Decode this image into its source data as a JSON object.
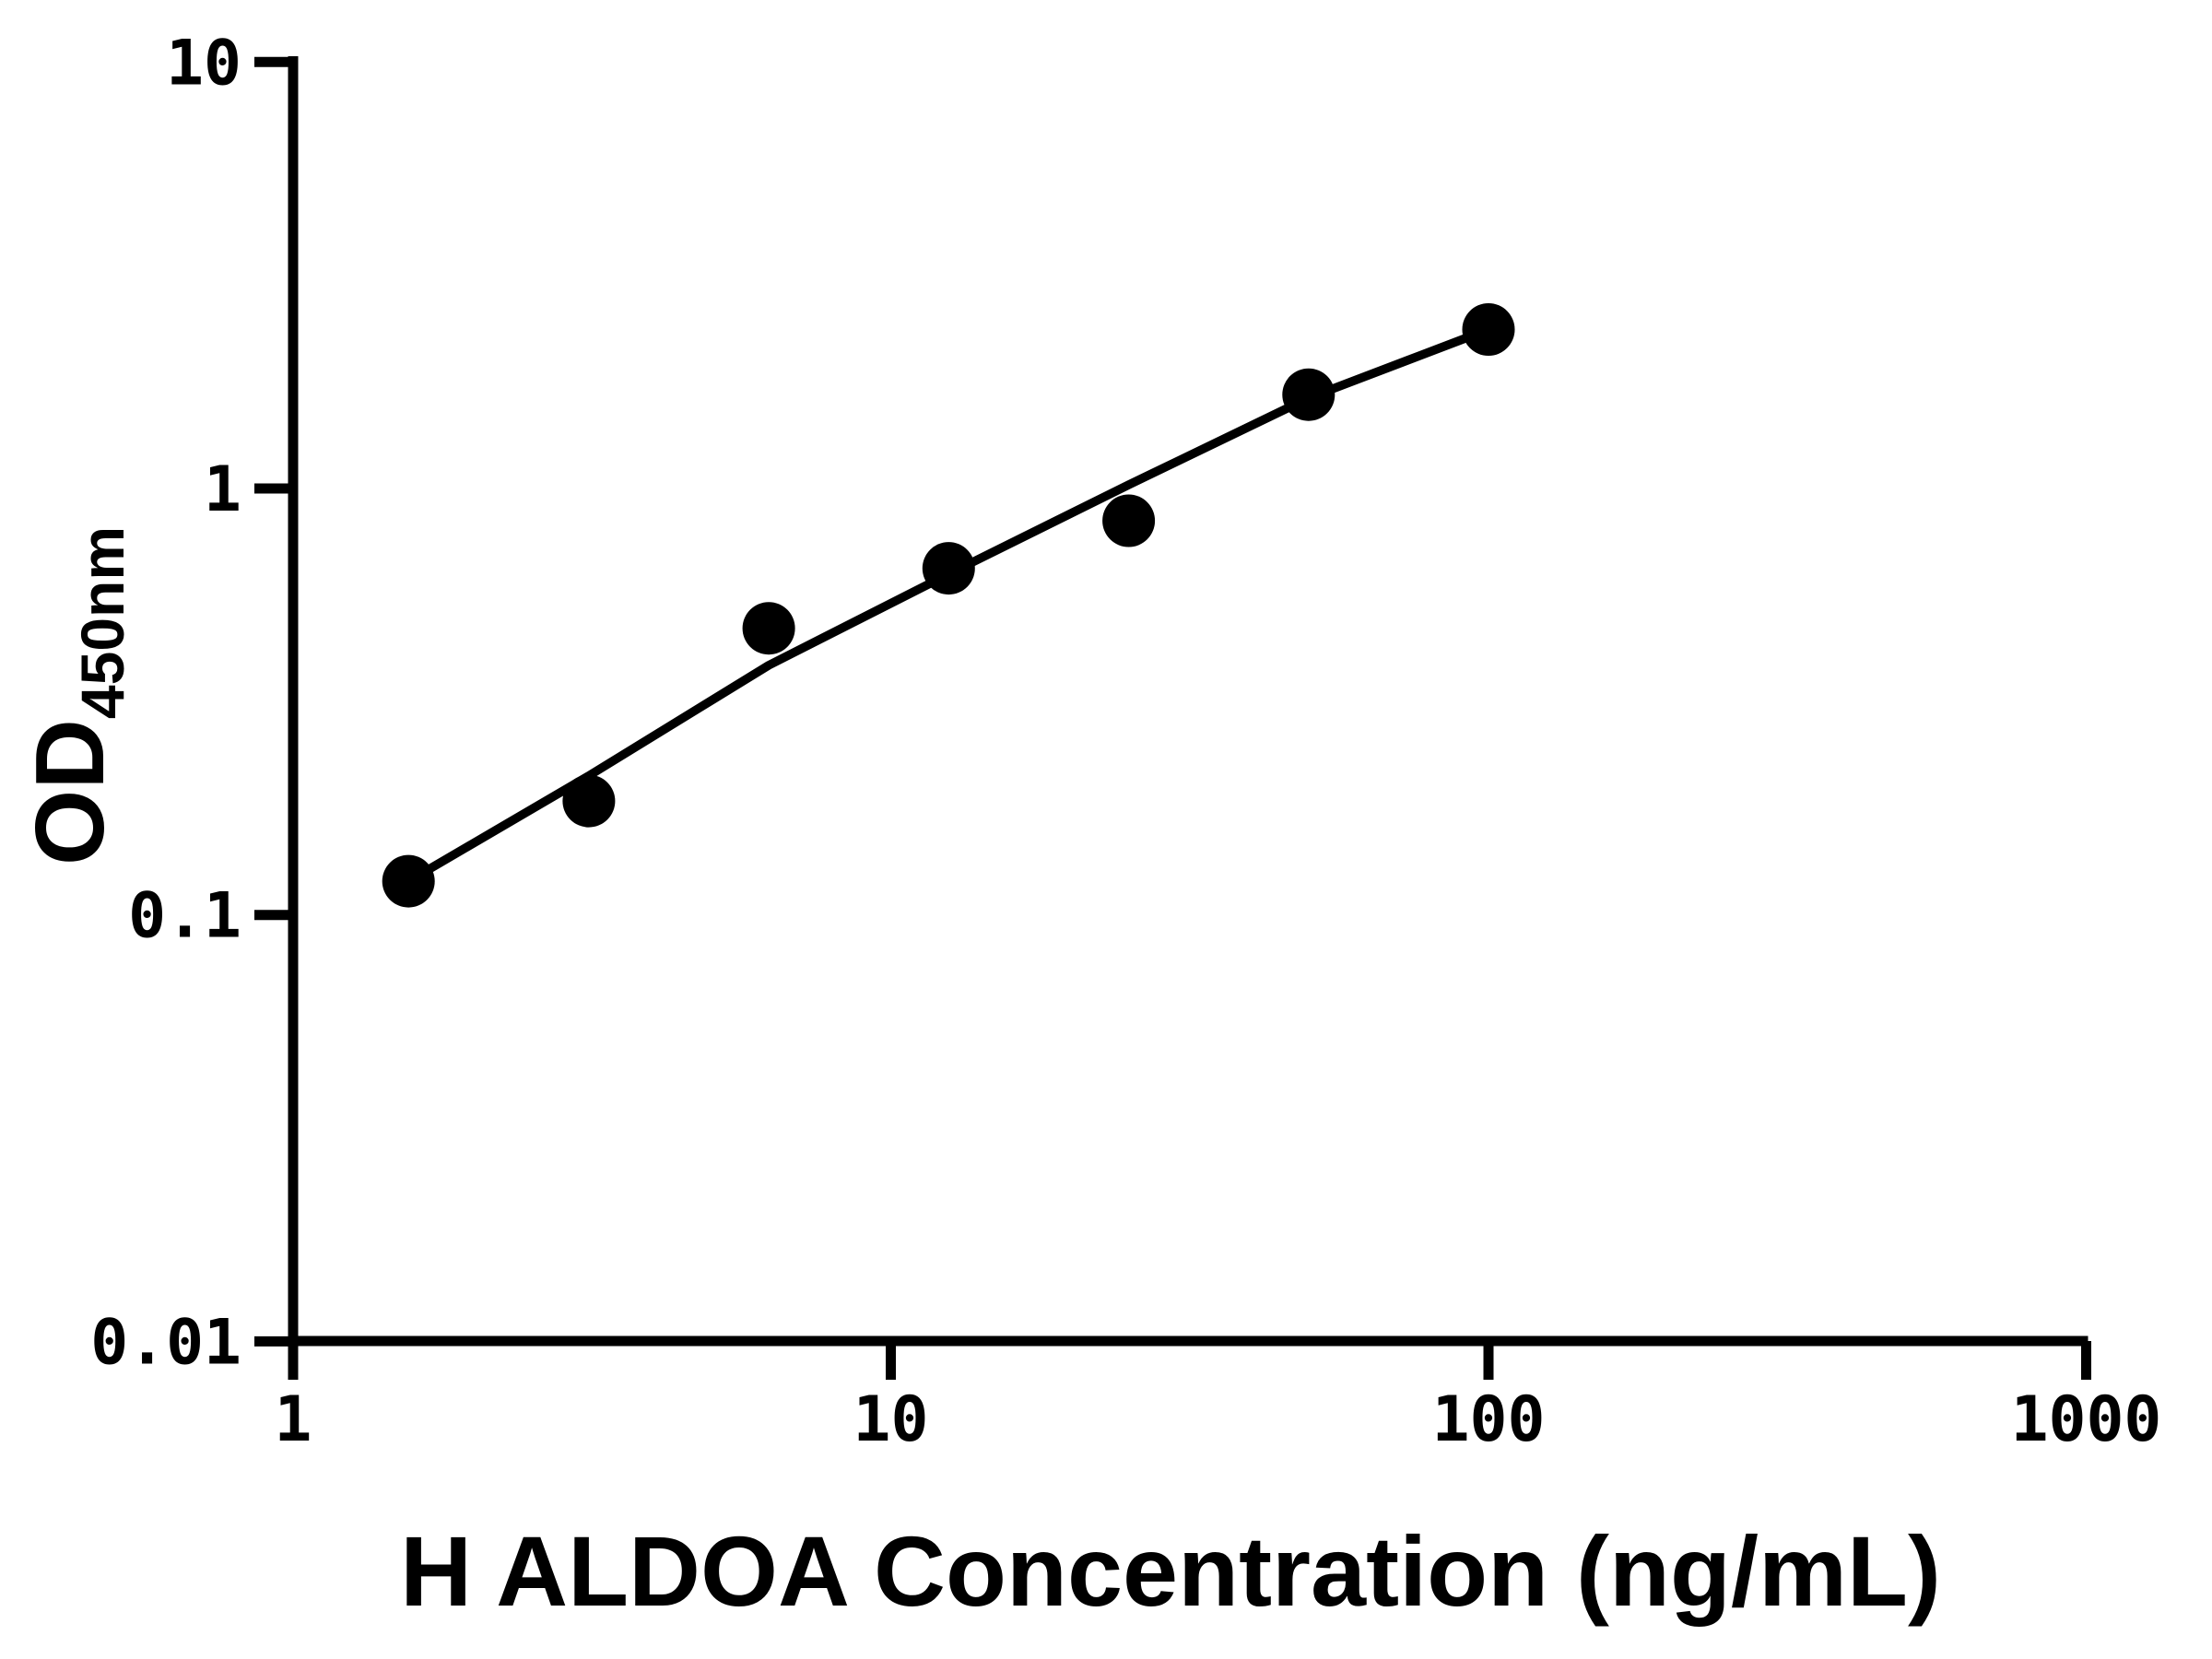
{
  "chart_data": {
    "type": "scatter",
    "title": "",
    "xlabel": "H ALDOA Concentration (ng/mL)",
    "ylabel_main": "OD",
    "ylabel_sub": "450nm",
    "x_scale": "log",
    "y_scale": "log",
    "xlim": [
      1,
      1000
    ],
    "ylim": [
      0.01,
      10
    ],
    "grid": "off",
    "legend": "none",
    "x_ticks": [
      {
        "value": 1,
        "label": "1"
      },
      {
        "value": 10,
        "label": "10"
      },
      {
        "value": 100,
        "label": "100"
      },
      {
        "value": 1000,
        "label": "1000"
      }
    ],
    "y_ticks": [
      {
        "value": 0.01,
        "label": "0.01"
      },
      {
        "value": 0.1,
        "label": "0.1"
      },
      {
        "value": 1,
        "label": "1"
      },
      {
        "value": 10,
        "label": "10"
      }
    ],
    "series": [
      {
        "name": "standard-curve-points",
        "marker": "filled-circle",
        "x": [
          1.56,
          3.125,
          6.25,
          12.5,
          25,
          50,
          100
        ],
        "y": [
          0.12,
          0.185,
          0.47,
          0.65,
          0.84,
          1.66,
          2.36
        ]
      }
    ],
    "fit_line": {
      "name": "standard-curve-fit",
      "x": [
        1.56,
        3.125,
        6.25,
        12.5,
        25,
        50,
        100
      ],
      "y": [
        0.12,
        0.212,
        0.385,
        0.63,
        1.02,
        1.63,
        2.36
      ]
    },
    "colors": {
      "marker": "#000000",
      "line": "#000000",
      "axis": "#000000",
      "background": "#ffffff"
    }
  }
}
